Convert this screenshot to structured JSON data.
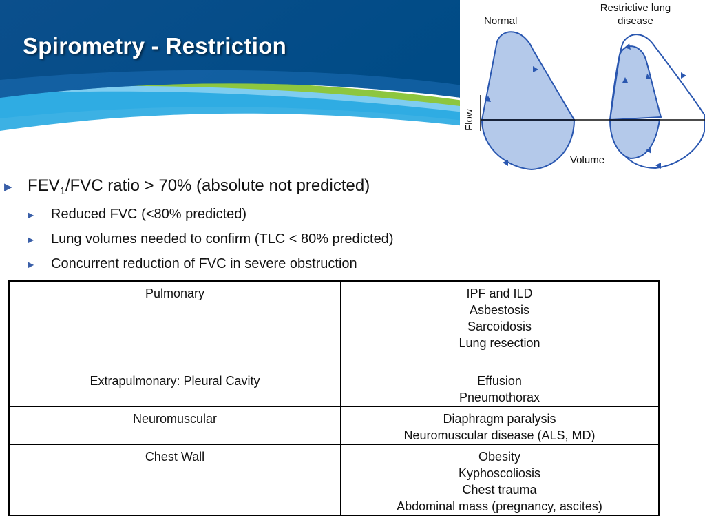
{
  "slide": {
    "title": "Spirometry - Restriction"
  },
  "diagram": {
    "label_normal": "Normal",
    "label_restrictive_line1": "Restrictive lung",
    "label_restrictive_line2": "disease",
    "axis_y": "Flow",
    "axis_x": "Volume",
    "colors": {
      "loop_fill": "#b4c9ea",
      "loop_stroke": "#2a57b0"
    }
  },
  "bullets": {
    "main_prefix": "FEV",
    "main_sub": "1",
    "main_suffix": "/FVC ratio > 70% (absolute not predicted)",
    "sub1": "Reduced FVC (<80% predicted)",
    "sub2": "Lung volumes needed to confirm (TLC < 80% predicted)",
    "sub3": "Concurrent reduction of FVC in severe obstruction"
  },
  "table": {
    "rows": [
      {
        "category": "Pulmonary",
        "conditions": [
          "IPF and ILD",
          "Asbestosis",
          "Sarcoidosis",
          "Lung resection"
        ]
      },
      {
        "category": "Extrapulmonary: Pleural Cavity",
        "conditions": [
          "Effusion",
          "Pneumothorax"
        ]
      },
      {
        "category": "Neuromuscular",
        "conditions": [
          "Diaphragm paralysis",
          "Neuromuscular disease (ALS, MD)"
        ]
      },
      {
        "category": "Chest Wall",
        "conditions": [
          "Obesity",
          "Kyphoscoliosis",
          "Chest trauma",
          "Abdominal mass (pregnancy, ascites)"
        ]
      }
    ]
  },
  "colors": {
    "banner_dark": "#00467f",
    "banner_mid": "#1d6fb6",
    "swoosh_cyan": "#27a9e1",
    "swoosh_green": "#8dc63f",
    "bullet_marker": "#3a5fa8"
  }
}
